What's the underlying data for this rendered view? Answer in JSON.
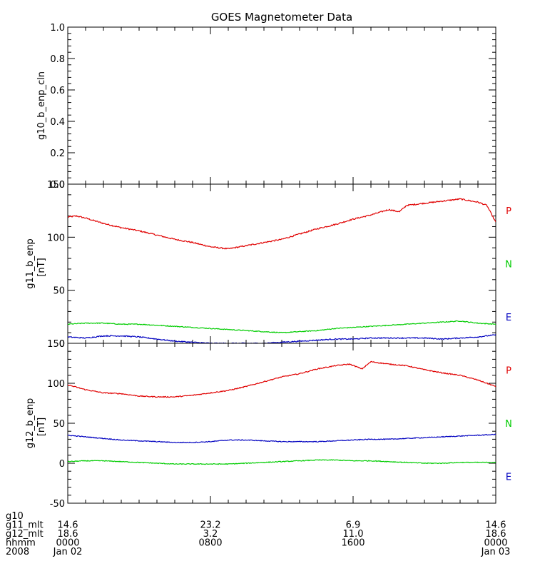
{
  "chart_data": {
    "title": "GOES Magnetometer Data",
    "panels": [
      {
        "id": "g10",
        "type": "line",
        "ylabel": "g10_b_enp_cln",
        "yunit": "",
        "ylim": [
          0,
          1
        ],
        "ytick_values": [
          0,
          0.2,
          0.4,
          0.6,
          0.8,
          1.0
        ],
        "ytick_labels": [
          "0.0",
          "0.2",
          "0.4",
          "0.6",
          "0.8",
          "1.0"
        ],
        "series": [],
        "legend": []
      },
      {
        "id": "g11",
        "type": "line",
        "ylabel": "g11_b_enp",
        "yunit": "[nT]",
        "ylim": [
          0,
          150
        ],
        "ytick_values": [
          0,
          50,
          100,
          150
        ],
        "ytick_labels": [
          "0",
          "50",
          "100",
          "150"
        ],
        "legend": [
          {
            "label": "P",
            "color": "#e00000"
          },
          {
            "label": "N",
            "color": "#00cc00"
          },
          {
            "label": "E",
            "color": "#0000c0"
          }
        ],
        "series": [
          {
            "label": "P",
            "color": "#e00000",
            "noise": 0.6,
            "x": [
              0,
              0.5,
              1,
              2,
              3,
              4,
              5,
              6,
              7,
              8,
              9,
              10,
              11,
              12,
              13,
              14,
              15,
              16,
              17,
              18,
              18.6,
              19,
              20,
              21,
              22,
              23,
              23.5,
              24
            ],
            "y": [
              119,
              120,
              118,
              113,
              109,
              106,
              102,
              98,
              95,
              91,
              89,
              92,
              95,
              98,
              103,
              108,
              112,
              117,
              121,
              126,
              124,
              130,
              132,
              134,
              136,
              133,
              130,
              114
            ]
          },
          {
            "label": "N",
            "color": "#00cc00",
            "noise": 0.4,
            "x": [
              0,
              1,
              2,
              3,
              4,
              5,
              6,
              7,
              8,
              9,
              10,
              11,
              12,
              13,
              14,
              15,
              16,
              17,
              18,
              19,
              20,
              21,
              22,
              23,
              24
            ],
            "y": [
              18,
              19,
              19,
              18,
              18,
              17,
              16,
              15,
              14,
              13,
              12,
              11,
              10,
              11,
              12,
              14,
              15,
              16,
              17,
              18,
              19,
              20,
              21,
              19,
              18
            ]
          },
          {
            "label": "E",
            "color": "#0000c0",
            "noise": 0.5,
            "x": [
              0,
              1,
              2,
              3,
              4,
              5,
              6,
              7,
              8,
              9,
              10,
              11,
              12,
              13,
              14,
              15,
              16,
              17,
              18,
              19,
              20,
              21,
              22,
              23,
              24
            ],
            "y": [
              6,
              5,
              7,
              7,
              6,
              4,
              2,
              1,
              0,
              0,
              0,
              0,
              1,
              2,
              3,
              4,
              4,
              5,
              5,
              5,
              5,
              4,
              5,
              6,
              8
            ]
          }
        ]
      },
      {
        "id": "g12",
        "type": "line",
        "ylabel": "g12_b_enp",
        "yunit": "[nT]",
        "ylim": [
          -50,
          150
        ],
        "ytick_values": [
          -50,
          0,
          50,
          100,
          150
        ],
        "ytick_labels": [
          "-50",
          "0",
          "50",
          "100",
          "150"
        ],
        "legend": [
          {
            "label": "P",
            "color": "#e00000"
          },
          {
            "label": "N",
            "color": "#00cc00"
          },
          {
            "label": "E",
            "color": "#0000c0"
          }
        ],
        "series": [
          {
            "label": "P",
            "color": "#e00000",
            "noise": 0.6,
            "x": [
              0,
              1,
              2,
              3,
              4,
              5,
              6,
              7,
              8,
              9,
              10,
              11,
              12,
              13,
              14,
              15,
              15.8,
              16.5,
              17,
              18,
              19,
              20,
              21,
              22,
              23,
              24
            ],
            "y": [
              98,
              92,
              88,
              87,
              84,
              83,
              83,
              85,
              88,
              91,
              96,
              102,
              108,
              112,
              118,
              122,
              124,
              118,
              127,
              124,
              122,
              117,
              113,
              110,
              104,
              96
            ]
          },
          {
            "label": "N",
            "color": "#00cc00",
            "noise": 0.5,
            "x": [
              0,
              1,
              2,
              3,
              4,
              5,
              6,
              7,
              8,
              9,
              10,
              11,
              12,
              13,
              14,
              15,
              16,
              17,
              18,
              19,
              20,
              21,
              22,
              23,
              24
            ],
            "y": [
              2,
              3,
              3,
              2,
              1,
              0,
              -1,
              -1,
              -1,
              -1,
              0,
              1,
              2,
              3,
              4,
              4,
              3,
              3,
              2,
              1,
              0,
              0,
              1,
              1,
              1
            ]
          },
          {
            "label": "E",
            "color": "#0000c0",
            "noise": 0.5,
            "x": [
              0,
              1,
              2,
              3,
              4,
              5,
              6,
              7,
              8,
              9,
              10,
              11,
              12,
              13,
              14,
              15,
              16,
              17,
              18,
              19,
              20,
              21,
              22,
              23,
              24
            ],
            "y": [
              35,
              33,
              31,
              29,
              28,
              27,
              26,
              26,
              27,
              29,
              29,
              28,
              27,
              27,
              27,
              28,
              29,
              30,
              30,
              31,
              32,
              33,
              34,
              35,
              36
            ]
          }
        ]
      }
    ],
    "xaxis": {
      "xlim": [
        0,
        24
      ],
      "major_ticks": [
        0,
        8,
        16,
        24
      ],
      "minor_step": 1,
      "label_rows": [
        {
          "name": "g10",
          "values": [
            "",
            "",
            "",
            ""
          ],
          "label_only": true
        },
        {
          "name": "g11_mlt",
          "values": [
            "14.6",
            "23.2",
            "6.9",
            "14.6"
          ]
        },
        {
          "name": "g12_mlt",
          "values": [
            "18.6",
            "3.2",
            "11.0",
            "18.6"
          ]
        },
        {
          "name": "hhmm",
          "values": [
            "0000",
            "0800",
            "1600",
            "0000"
          ]
        },
        {
          "name": "2008",
          "values": [
            "Jan 02",
            "",
            "",
            "Jan 03"
          ]
        }
      ]
    }
  }
}
